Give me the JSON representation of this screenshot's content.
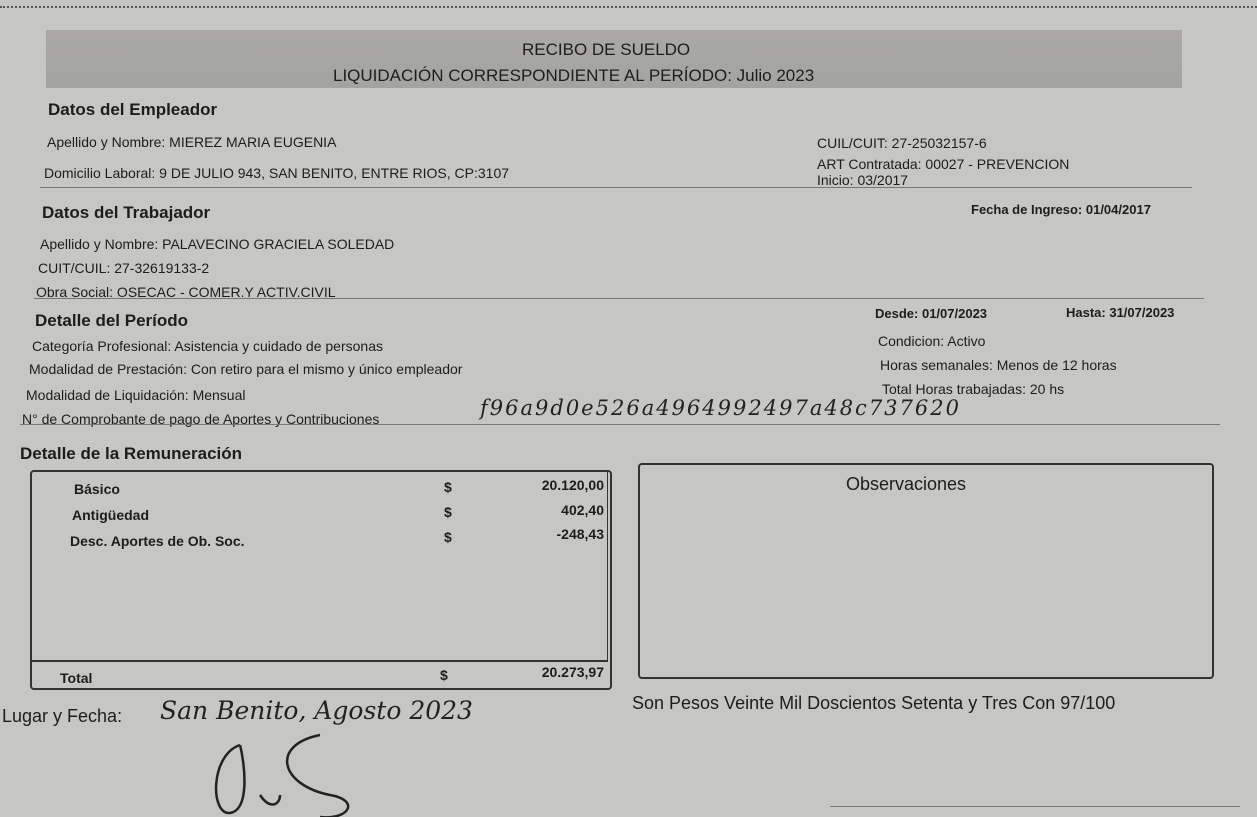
{
  "header": {
    "title": "RECIBO DE SUELDO",
    "period_line": "LIQUIDACIÓN CORRESPONDIENTE AL PERÍODO: Julio 2023"
  },
  "employer": {
    "heading": "Datos del Empleador",
    "name": "Apellido y Nombre: MIEREZ MARIA EUGENIA",
    "address": "Domicilio Laboral: 9 DE JULIO 943, SAN BENITO, ENTRE RIOS, CP:3107",
    "cuit": "CUIL/CUIT: 27-25032157-6",
    "art": "ART Contratada: 00027 - PREVENCION",
    "inicio": "Inicio: 03/2017"
  },
  "worker": {
    "heading": "Datos del Trabajador",
    "ingreso": "Fecha de Ingreso: 01/04/2017",
    "name": "Apellido y Nombre:  PALAVECINO GRACIELA SOLEDAD",
    "cuil": "CUIT/CUIL: 27-32619133-2",
    "obra_social": "Obra Social: OSECAC - COMER.Y ACTIV.CIVIL"
  },
  "period": {
    "heading": "Detalle del Período",
    "desde": "Desde: 01/07/2023",
    "hasta": "Hasta: 31/07/2023",
    "categoria": "Categoría Profesional: Asistencia y cuidado de personas",
    "condicion": "Condicion: Activo",
    "prestacion": "Modalidad de Prestación: Con retiro para el mismo y único empleador",
    "horas_sem": "Horas semanales: Menos de 12 horas",
    "liquidacion": "Modalidad de Liquidación: Mensual",
    "horas_total": "Total Horas trabajadas: 20 hs",
    "comprobante_label": "N° de Comprobante de pago de Aportes y Contribuciones",
    "comprobante_value": "f96a9d0e526a4964992497a48c737620"
  },
  "remuneracion": {
    "heading": "Detalle de la Remuneración",
    "items": [
      {
        "concept": "Básico",
        "currency": "$",
        "amount": "20.120,00"
      },
      {
        "concept": "Antigüedad",
        "currency": "$",
        "amount": "402,40"
      },
      {
        "concept": "Desc. Aportes de Ob. Soc.",
        "currency": "$",
        "amount": "-248,43"
      }
    ],
    "total_label": "Total",
    "total_currency": "$",
    "total_amount": "20.273,97"
  },
  "observaciones": {
    "heading": "Observaciones"
  },
  "footer": {
    "lugar_label": "Lugar y Fecha:",
    "lugar_value": "San Benito, Agosto 2023",
    "son_pesos": "Son Pesos Veinte Mil Doscientos Setenta y Tres Con  97/100"
  }
}
